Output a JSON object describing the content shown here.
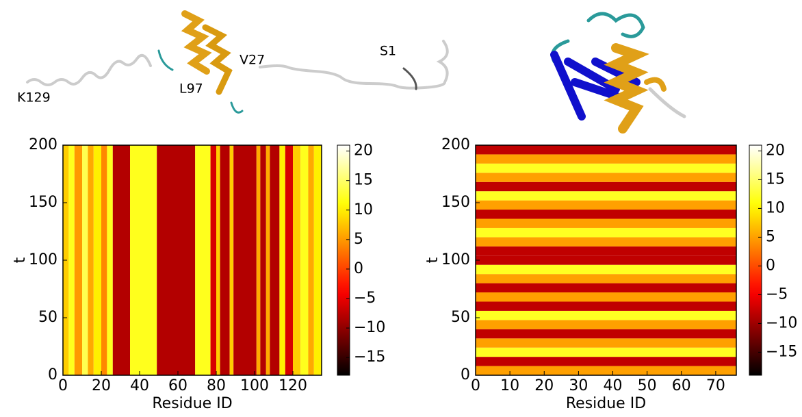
{
  "chart_data": [
    {
      "type": "heatmap",
      "xlabel": "Residue ID",
      "ylabel": "t",
      "xlim": [
        0,
        135
      ],
      "ylim": [
        0,
        200
      ],
      "xticks": [
        0,
        20,
        40,
        60,
        80,
        100,
        120
      ],
      "yticks": [
        0,
        50,
        100,
        150,
        200
      ],
      "colormap": "hot",
      "clim": [
        -18,
        21
      ],
      "cticks": [
        {
          "value": -15,
          "label": "−15"
        },
        {
          "value": -10,
          "label": "−10"
        },
        {
          "value": -5,
          "label": "−5"
        },
        0,
        5,
        10,
        15,
        20
      ],
      "x_edges": [
        0,
        3,
        6,
        10,
        13,
        16,
        20,
        23,
        26,
        35,
        49,
        69,
        77,
        80,
        82,
        87,
        89,
        101,
        103,
        106,
        108,
        113,
        116,
        120,
        124,
        128,
        131,
        135
      ],
      "values": [
        8,
        12,
        5,
        14,
        6,
        10,
        4,
        12,
        -8,
        12,
        -8,
        12,
        -6,
        8,
        -8,
        8,
        -8,
        6,
        -8,
        6,
        -8,
        10,
        -6,
        8,
        12,
        6,
        10
      ],
      "annotations": [
        "K129",
        "L97",
        "V27",
        "S1"
      ]
    },
    {
      "type": "heatmap",
      "xlabel": "Residue ID",
      "ylabel": "t",
      "xlim": [
        0,
        76
      ],
      "ylim": [
        0,
        200
      ],
      "xticks": [
        0,
        10,
        20,
        30,
        40,
        50,
        60,
        70
      ],
      "yticks": [
        0,
        50,
        100,
        150,
        200
      ],
      "colormap": "hot",
      "clim": [
        -19,
        21
      ],
      "cticks": [
        {
          "value": -15,
          "label": "−15"
        },
        {
          "value": -10,
          "label": "−10"
        },
        {
          "value": -5,
          "label": "−5"
        },
        0,
        5,
        10,
        15,
        20
      ],
      "y_edges": [
        0,
        8,
        16,
        24,
        32,
        40,
        48,
        56,
        64,
        72,
        80,
        88,
        96,
        104,
        112,
        120,
        128,
        136,
        144,
        152,
        160,
        168,
        176,
        184,
        192,
        200
      ],
      "values": [
        5,
        -8,
        12,
        5,
        -8,
        5,
        12,
        -8,
        5,
        -8,
        5,
        12,
        -8,
        -8,
        5,
        12,
        5,
        -8,
        5,
        12,
        -8,
        5,
        12,
        5,
        -8
      ]
    }
  ]
}
